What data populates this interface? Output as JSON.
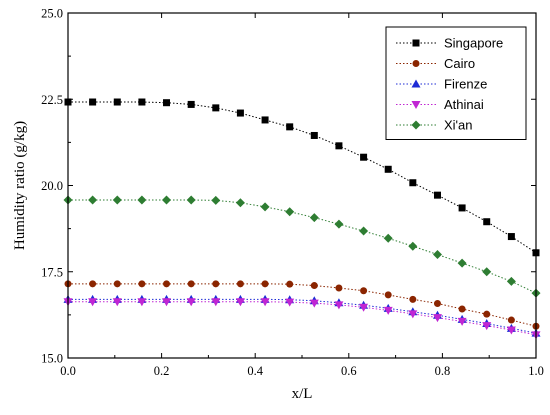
{
  "chart_data": {
    "type": "line",
    "xlabel": "x/L",
    "ylabel": "Humidity ratio (g/kg)",
    "xlim": [
      0.0,
      1.0
    ],
    "ylim": [
      15.0,
      25.0
    ],
    "xticks": [
      "0.0",
      "0.2",
      "0.4",
      "0.6",
      "0.8",
      "1.0"
    ],
    "yticks": [
      "15.0",
      "17.5",
      "20.0",
      "22.5",
      "25.0"
    ],
    "legend_position": "top-right",
    "grid": false,
    "x": [
      0.0,
      0.0526,
      0.1053,
      0.1579,
      0.2105,
      0.2632,
      0.3158,
      0.3684,
      0.4211,
      0.4737,
      0.5263,
      0.5789,
      0.6316,
      0.6842,
      0.7368,
      0.7895,
      0.8421,
      0.8947,
      0.9474,
      1.0
    ],
    "series": [
      {
        "name": "Singapore",
        "color": "#000000",
        "marker": "square",
        "values": [
          22.42,
          22.42,
          22.42,
          22.42,
          22.4,
          22.35,
          22.25,
          22.1,
          21.9,
          21.7,
          21.45,
          21.15,
          20.82,
          20.47,
          20.08,
          19.72,
          19.35,
          18.95,
          18.52,
          18.05
        ]
      },
      {
        "name": "Cairo",
        "color": "#8B2500",
        "marker": "circle",
        "values": [
          17.15,
          17.15,
          17.15,
          17.15,
          17.15,
          17.15,
          17.15,
          17.15,
          17.15,
          17.14,
          17.1,
          17.03,
          16.95,
          16.83,
          16.7,
          16.58,
          16.42,
          16.27,
          16.1,
          15.92
        ]
      },
      {
        "name": "Firenze",
        "color": "#1E2BD6",
        "marker": "triangle-up",
        "values": [
          16.7,
          16.7,
          16.7,
          16.7,
          16.7,
          16.7,
          16.7,
          16.7,
          16.7,
          16.69,
          16.66,
          16.6,
          16.53,
          16.44,
          16.34,
          16.24,
          16.12,
          16.0,
          15.86,
          15.72
        ]
      },
      {
        "name": "Athinai",
        "color": "#C026D3",
        "marker": "triangle-down",
        "values": [
          16.63,
          16.63,
          16.63,
          16.63,
          16.63,
          16.63,
          16.63,
          16.63,
          16.63,
          16.62,
          16.59,
          16.54,
          16.47,
          16.38,
          16.28,
          16.17,
          16.06,
          15.94,
          15.81,
          15.67
        ]
      },
      {
        "name": "Xi'an",
        "color": "#2E7D32",
        "marker": "diamond",
        "values": [
          19.58,
          19.58,
          19.58,
          19.58,
          19.58,
          19.58,
          19.57,
          19.5,
          19.38,
          19.24,
          19.07,
          18.88,
          18.68,
          18.47,
          18.24,
          18.0,
          17.75,
          17.5,
          17.22,
          16.88
        ]
      }
    ]
  }
}
